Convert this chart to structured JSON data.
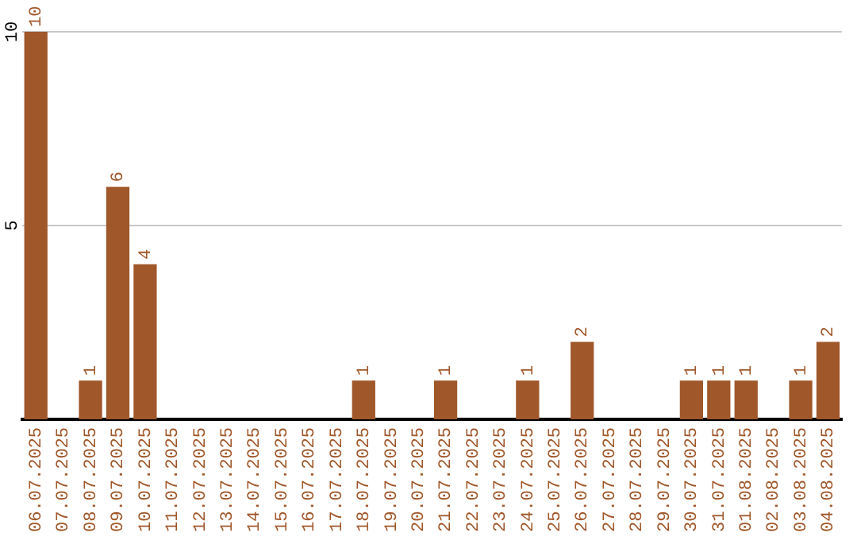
{
  "chart_data": {
    "type": "bar",
    "categories": [
      "06.07.2025",
      "07.07.2025",
      "08.07.2025",
      "09.07.2025",
      "10.07.2025",
      "11.07.2025",
      "12.07.2025",
      "13.07.2025",
      "14.07.2025",
      "15.07.2025",
      "16.07.2025",
      "17.07.2025",
      "18.07.2025",
      "19.07.2025",
      "20.07.2025",
      "21.07.2025",
      "22.07.2025",
      "23.07.2025",
      "24.07.2025",
      "25.07.2025",
      "26.07.2025",
      "27.07.2025",
      "28.07.2025",
      "29.07.2025",
      "30.07.2025",
      "31.07.2025",
      "01.08.2025",
      "02.08.2025",
      "03.08.2025",
      "04.08.2025"
    ],
    "values": [
      10,
      0,
      1,
      6,
      4,
      0,
      0,
      0,
      0,
      0,
      0,
      0,
      1,
      0,
      0,
      1,
      0,
      0,
      1,
      0,
      2,
      0,
      0,
      0,
      1,
      1,
      1,
      0,
      1,
      2
    ],
    "value_labels": [
      "10",
      null,
      "1",
      "6",
      "4",
      null,
      null,
      null,
      null,
      null,
      null,
      null,
      "1",
      null,
      null,
      "1",
      null,
      null,
      "1",
      null,
      "2",
      null,
      null,
      null,
      "1",
      "1",
      "1",
      null,
      "1",
      "2"
    ],
    "color": "#a0572a",
    "ylim": [
      0,
      10
    ],
    "yticks": [
      5,
      10
    ],
    "grid": "y",
    "legend": false
  }
}
